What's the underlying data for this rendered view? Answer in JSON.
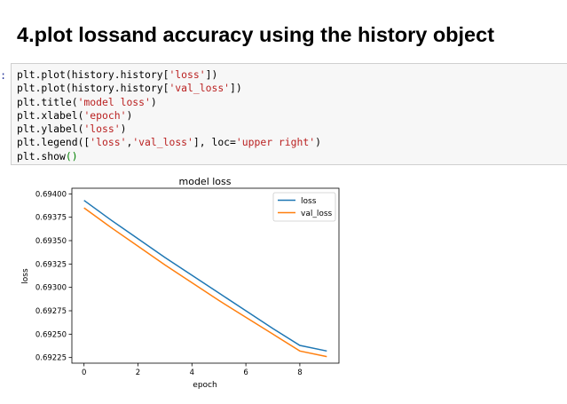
{
  "heading": "4.plot lossand accuracy using the history object",
  "cell": {
    "prompt": ":",
    "lines": [
      [
        {
          "t": "plt.plot(history.history["
        },
        {
          "t": "'loss'",
          "c": "s"
        },
        {
          "t": "])"
        }
      ],
      [
        {
          "t": "plt.plot(history.history["
        },
        {
          "t": "'val_loss'",
          "c": "s"
        },
        {
          "t": "])"
        }
      ],
      [
        {
          "t": "plt.title("
        },
        {
          "t": "'model loss'",
          "c": "s"
        },
        {
          "t": ")"
        }
      ],
      [
        {
          "t": "plt.xlabel("
        },
        {
          "t": "'epoch'",
          "c": "s"
        },
        {
          "t": ")"
        }
      ],
      [
        {
          "t": "plt.ylabel("
        },
        {
          "t": "'loss'",
          "c": "s"
        },
        {
          "t": ")"
        }
      ],
      [
        {
          "t": "plt.legend(["
        },
        {
          "t": "'loss'",
          "c": "s"
        },
        {
          "t": ","
        },
        {
          "t": "'val_loss'",
          "c": "s"
        },
        {
          "t": "], loc="
        },
        {
          "t": "'upper right'",
          "c": "s"
        },
        {
          "t": ")"
        }
      ],
      [
        {
          "t": "plt.show"
        },
        {
          "t": "()",
          "c": "p"
        }
      ]
    ]
  },
  "chart_data": {
    "type": "line",
    "title": "model loss",
    "xlabel": "epoch",
    "ylabel": "loss",
    "xlim": [
      -0.45,
      9.45
    ],
    "ylim": [
      0.69219,
      0.69406
    ],
    "xticks": [
      0,
      2,
      4,
      6,
      8
    ],
    "xtick_labels": [
      "0",
      "2",
      "4",
      "6",
      "8"
    ],
    "yticks": [
      0.69225,
      0.6925,
      0.69275,
      0.693,
      0.69325,
      0.6935,
      0.69375,
      0.694
    ],
    "ytick_labels": [
      "0.69225",
      "0.69250",
      "0.69275",
      "0.69300",
      "0.69325",
      "0.69350",
      "0.69375",
      "0.69400"
    ],
    "legend_position": "upper right",
    "grid": false,
    "x": [
      0,
      1,
      2,
      3,
      4,
      5,
      6,
      7,
      8,
      9
    ],
    "series": [
      {
        "name": "loss",
        "color": "#1f77b4",
        "values": [
          0.69393,
          0.69372,
          0.69352,
          0.69332,
          0.69313,
          0.69294,
          0.69275,
          0.69256,
          0.69238,
          0.69232
        ]
      },
      {
        "name": "val_loss",
        "color": "#ff7f0e",
        "values": [
          0.69385,
          0.69364,
          0.69344,
          0.69324,
          0.69305,
          0.69286,
          0.69268,
          0.6925,
          0.69232,
          0.69226
        ]
      }
    ]
  }
}
